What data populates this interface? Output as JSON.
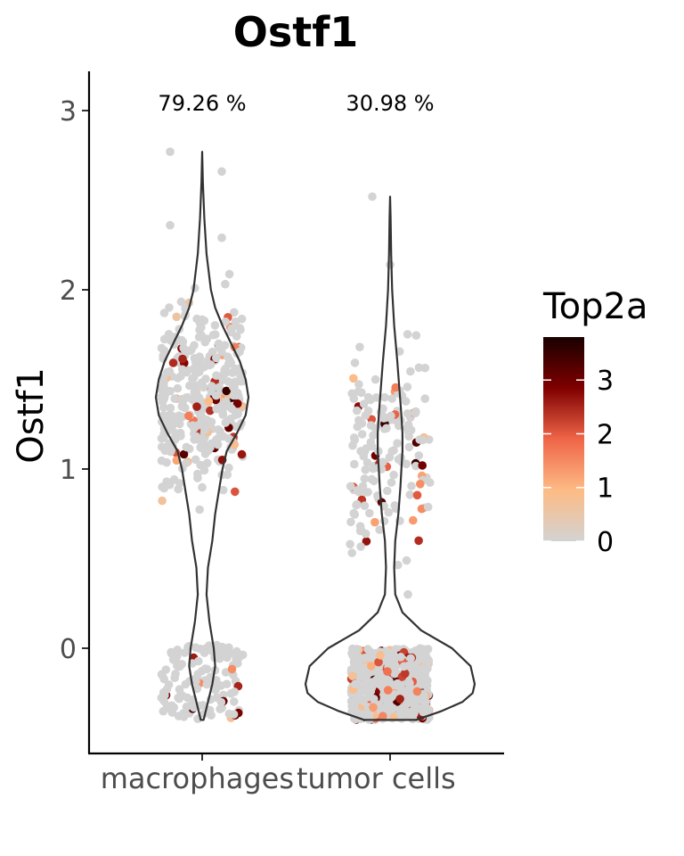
{
  "chart_data": {
    "type": "violin",
    "title": "Ostf1",
    "ylabel": "Ostf1",
    "xlabel": "",
    "ylim": [
      -0.6,
      3.2
    ],
    "yticks": [
      0,
      1,
      2,
      3
    ],
    "categories": [
      "macrophages",
      "tumor cells"
    ],
    "percent_labels": [
      "79.26 %",
      "30.98 %"
    ],
    "color_legend": {
      "title": "Top2a",
      "ticks": [
        0,
        1,
        2,
        3
      ],
      "range": [
        0,
        3.8
      ],
      "colors": [
        "#d3d3d3",
        "#fdbb84",
        "#ef6548",
        "#7f0000",
        "#1a0000"
      ]
    },
    "violins": [
      {
        "category": "macrophages",
        "y_min": -0.4,
        "y_max": 2.77,
        "density_profile": [
          [
            -0.4,
            0.01
          ],
          [
            -0.3,
            0.04
          ],
          [
            -0.2,
            0.07
          ],
          [
            -0.1,
            0.09
          ],
          [
            0.0,
            0.08
          ],
          [
            0.15,
            0.05
          ],
          [
            0.3,
            0.03
          ],
          [
            0.45,
            0.04
          ],
          [
            0.6,
            0.07
          ],
          [
            0.75,
            0.09
          ],
          [
            0.9,
            0.12
          ],
          [
            1.0,
            0.14
          ],
          [
            1.1,
            0.17
          ],
          [
            1.2,
            0.24
          ],
          [
            1.3,
            0.3
          ],
          [
            1.4,
            0.32
          ],
          [
            1.5,
            0.3
          ],
          [
            1.6,
            0.26
          ],
          [
            1.7,
            0.2
          ],
          [
            1.8,
            0.14
          ],
          [
            1.9,
            0.09
          ],
          [
            2.0,
            0.06
          ],
          [
            2.2,
            0.03
          ],
          [
            2.4,
            0.015
          ],
          [
            2.6,
            0.005
          ],
          [
            2.77,
            0.0
          ]
        ]
      },
      {
        "category": "tumor cells",
        "y_min": -0.4,
        "y_max": 2.52,
        "density_profile": [
          [
            -0.4,
            0.25
          ],
          [
            -0.35,
            0.5
          ],
          [
            -0.3,
            0.7
          ],
          [
            -0.25,
            0.8
          ],
          [
            -0.2,
            0.82
          ],
          [
            -0.1,
            0.78
          ],
          [
            0.0,
            0.6
          ],
          [
            0.1,
            0.3
          ],
          [
            0.2,
            0.12
          ],
          [
            0.3,
            0.05
          ],
          [
            0.45,
            0.04
          ],
          [
            0.6,
            0.05
          ],
          [
            0.75,
            0.08
          ],
          [
            0.9,
            0.1
          ],
          [
            1.0,
            0.11
          ],
          [
            1.1,
            0.12
          ],
          [
            1.2,
            0.12
          ],
          [
            1.3,
            0.11
          ],
          [
            1.45,
            0.09
          ],
          [
            1.6,
            0.07
          ],
          [
            1.8,
            0.04
          ],
          [
            2.0,
            0.02
          ],
          [
            2.2,
            0.01
          ],
          [
            2.4,
            0.005
          ],
          [
            2.52,
            0.0
          ]
        ]
      }
    ]
  }
}
